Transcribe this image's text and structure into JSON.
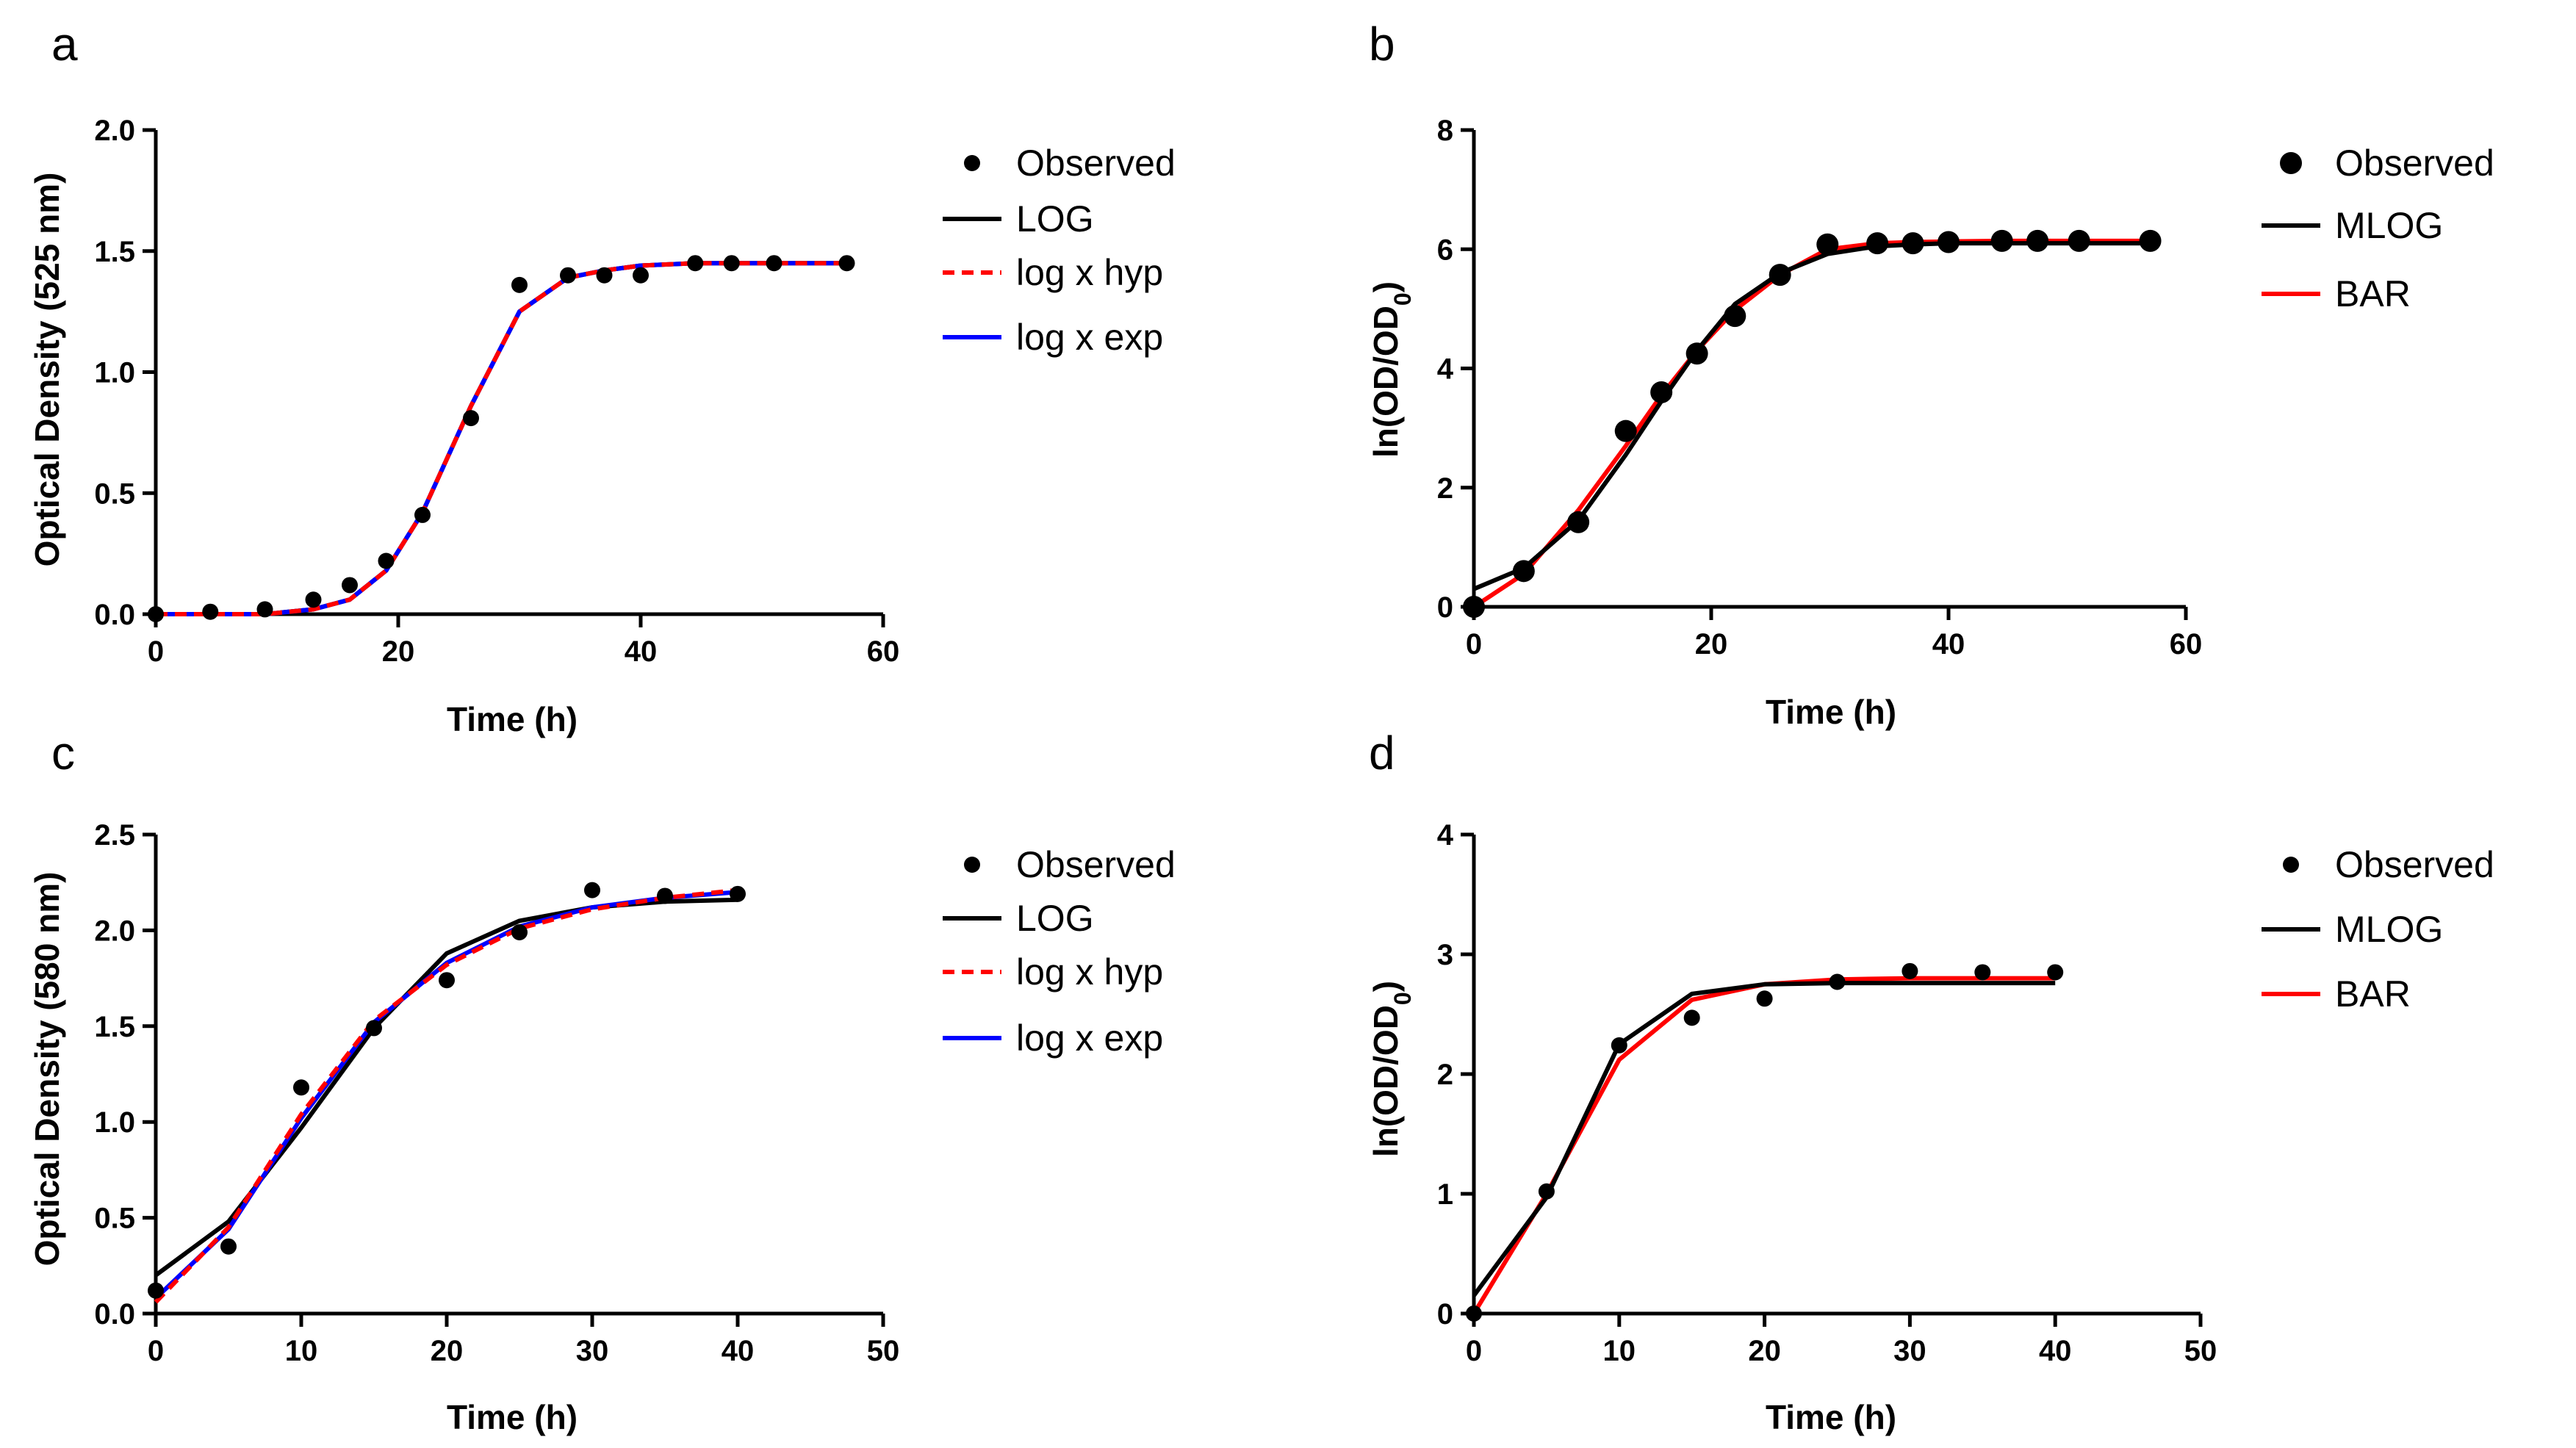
{
  "chart_data": [
    {
      "panel": "a",
      "type": "line",
      "xlabel": "Time (h)",
      "ylabel": "Optical Density (525 nm)",
      "xlim": [
        0,
        60
      ],
      "ylim": [
        0,
        2.0
      ],
      "xticks": [
        0,
        20,
        40,
        60
      ],
      "yticks": [
        0.0,
        0.5,
        1.0,
        1.5,
        2.0
      ],
      "xtick_labels": [
        "0",
        "20",
        "40",
        "60"
      ],
      "ytick_labels": [
        "0.0",
        "0.5",
        "1.0",
        "1.5",
        "2.0"
      ],
      "legend": [
        {
          "name": "Observed",
          "kind": "marker",
          "color": "#000000"
        },
        {
          "name": "LOG",
          "kind": "line",
          "color": "#000000",
          "dash": "solid"
        },
        {
          "name": "log x hyp",
          "kind": "line",
          "color": "#ff0000",
          "dash": "dashed"
        },
        {
          "name": "log x exp",
          "kind": "line",
          "color": "#0000ff",
          "dash": "solid"
        }
      ],
      "observed": {
        "x": [
          0,
          4.5,
          9,
          13,
          16,
          19,
          22,
          26,
          30,
          34,
          37,
          40,
          44.5,
          47.5,
          51,
          57
        ],
        "y": [
          0.0,
          0.01,
          0.02,
          0.06,
          0.12,
          0.22,
          0.41,
          0.81,
          1.36,
          1.4,
          1.4,
          1.4,
          1.45,
          1.45,
          1.45,
          1.45
        ]
      },
      "series": [
        {
          "name": "LOG",
          "color": "#000000",
          "dash": "solid",
          "x": [
            0,
            4.5,
            9,
            13,
            16,
            19,
            22,
            26,
            30,
            34,
            37,
            40,
            44.5,
            47.5,
            51,
            57
          ],
          "y": [
            0.0,
            0.0,
            0.0,
            0.02,
            0.06,
            0.18,
            0.42,
            0.86,
            1.25,
            1.39,
            1.42,
            1.44,
            1.45,
            1.45,
            1.45,
            1.45
          ]
        },
        {
          "name": "log x exp",
          "color": "#0000ff",
          "dash": "solid",
          "x": [
            0,
            4.5,
            9,
            13,
            16,
            19,
            22,
            26,
            30,
            34,
            37,
            40,
            44.5,
            47.5,
            51,
            57
          ],
          "y": [
            0.0,
            0.0,
            0.0,
            0.02,
            0.06,
            0.18,
            0.42,
            0.86,
            1.25,
            1.39,
            1.42,
            1.44,
            1.45,
            1.45,
            1.45,
            1.45
          ]
        },
        {
          "name": "log x hyp",
          "color": "#ff0000",
          "dash": "dashed",
          "x": [
            0,
            4.5,
            9,
            13,
            16,
            19,
            22,
            26,
            30,
            34,
            37,
            40,
            44.5,
            47.5,
            51,
            57
          ],
          "y": [
            0.0,
            0.0,
            0.0,
            0.02,
            0.06,
            0.18,
            0.42,
            0.86,
            1.25,
            1.39,
            1.42,
            1.44,
            1.45,
            1.45,
            1.45,
            1.45
          ]
        }
      ]
    },
    {
      "panel": "b",
      "type": "line",
      "xlabel": "Time (h)",
      "ylabel": "ln(OD/OD0)",
      "xlim": [
        0,
        60
      ],
      "ylim": [
        0,
        8
      ],
      "xticks": [
        0,
        20,
        40,
        60
      ],
      "yticks": [
        0,
        2,
        4,
        6,
        8
      ],
      "xtick_labels": [
        "0",
        "20",
        "40",
        "60"
      ],
      "ytick_labels": [
        "0",
        "2",
        "4",
        "6",
        "8"
      ],
      "legend": [
        {
          "name": "Observed",
          "kind": "marker",
          "color": "#000000"
        },
        {
          "name": "MLOG",
          "kind": "line",
          "color": "#000000",
          "dash": "solid"
        },
        {
          "name": "BAR",
          "kind": "line",
          "color": "#ff0000",
          "dash": "solid"
        }
      ],
      "observed": {
        "x": [
          0,
          4.2,
          8.8,
          12.8,
          15.8,
          18.8,
          22,
          25.8,
          29.8,
          34,
          37,
          40,
          44.5,
          47.5,
          51,
          57
        ],
        "y": [
          0.0,
          0.6,
          1.42,
          2.95,
          3.6,
          4.25,
          4.88,
          5.57,
          6.08,
          6.1,
          6.1,
          6.12,
          6.14,
          6.14,
          6.14,
          6.14
        ]
      },
      "series": [
        {
          "name": "BAR",
          "color": "#ff0000",
          "dash": "solid",
          "x": [
            0,
            4.2,
            8.8,
            12.8,
            15.8,
            18.8,
            22,
            25.8,
            29.8,
            34,
            37,
            40,
            44.5,
            47.5,
            51,
            57
          ],
          "y": [
            0.0,
            0.55,
            1.62,
            2.7,
            3.55,
            4.3,
            4.98,
            5.57,
            6.0,
            6.1,
            6.12,
            6.13,
            6.14,
            6.14,
            6.14,
            6.14
          ]
        },
        {
          "name": "MLOG",
          "color": "#000000",
          "dash": "solid",
          "x": [
            0,
            4.2,
            8.8,
            12.8,
            15.8,
            18.8,
            22,
            25.8,
            29.8,
            34,
            37,
            40,
            44.5,
            47.5,
            51,
            57
          ],
          "y": [
            0.3,
            0.65,
            1.45,
            2.55,
            3.45,
            4.3,
            5.08,
            5.6,
            5.92,
            6.05,
            6.08,
            6.1,
            6.1,
            6.1,
            6.1,
            6.1
          ]
        }
      ]
    },
    {
      "panel": "c",
      "type": "line",
      "xlabel": "Time (h)",
      "ylabel": "Optical Density (580 nm)",
      "xlim": [
        0,
        50
      ],
      "ylim": [
        0,
        2.5
      ],
      "xticks": [
        0,
        10,
        20,
        30,
        40,
        50
      ],
      "yticks": [
        0.0,
        0.5,
        1.0,
        1.5,
        2.0,
        2.5
      ],
      "xtick_labels": [
        "0",
        "10",
        "20",
        "30",
        "40",
        "50"
      ],
      "ytick_labels": [
        "0.0",
        "0.5",
        "1.0",
        "1.5",
        "2.0",
        "2.5"
      ],
      "legend": [
        {
          "name": "Observed",
          "kind": "marker",
          "color": "#000000"
        },
        {
          "name": "LOG",
          "kind": "line",
          "color": "#000000",
          "dash": "solid"
        },
        {
          "name": "log x hyp",
          "kind": "line",
          "color": "#ff0000",
          "dash": "dashed"
        },
        {
          "name": "log x exp",
          "kind": "line",
          "color": "#0000ff",
          "dash": "solid"
        }
      ],
      "observed": {
        "x": [
          0,
          5,
          10,
          15,
          20,
          25,
          30,
          35,
          40
        ],
        "y": [
          0.12,
          0.35,
          1.18,
          1.49,
          1.74,
          1.99,
          2.21,
          2.18,
          2.19
        ]
      },
      "series": [
        {
          "name": "LOG",
          "color": "#000000",
          "dash": "solid",
          "x": [
            0,
            5,
            10,
            15,
            20,
            25,
            30,
            35,
            40
          ],
          "y": [
            0.2,
            0.48,
            0.97,
            1.49,
            1.88,
            2.05,
            2.12,
            2.15,
            2.16
          ]
        },
        {
          "name": "log x exp",
          "color": "#0000ff",
          "dash": "solid",
          "x": [
            0,
            5,
            10,
            15,
            20,
            25,
            30,
            35,
            40
          ],
          "y": [
            0.08,
            0.44,
            1.02,
            1.52,
            1.83,
            2.02,
            2.12,
            2.17,
            2.2
          ]
        },
        {
          "name": "log x hyp",
          "color": "#ff0000",
          "dash": "dashed",
          "x": [
            0,
            5,
            10,
            15,
            20,
            25,
            30,
            35,
            40
          ],
          "y": [
            0.06,
            0.45,
            1.04,
            1.53,
            1.82,
            2.01,
            2.11,
            2.17,
            2.21
          ]
        }
      ]
    },
    {
      "panel": "d",
      "type": "line",
      "xlabel": "Time (h)",
      "ylabel": "ln(OD/OD0)",
      "xlim": [
        0,
        50
      ],
      "ylim": [
        0,
        4
      ],
      "xticks": [
        0,
        10,
        20,
        30,
        40,
        50
      ],
      "yticks": [
        0,
        1,
        2,
        3,
        4
      ],
      "xtick_labels": [
        "0",
        "10",
        "20",
        "30",
        "40",
        "50"
      ],
      "ytick_labels": [
        "0",
        "1",
        "2",
        "3",
        "4"
      ],
      "legend": [
        {
          "name": "Observed",
          "kind": "marker",
          "color": "#000000"
        },
        {
          "name": "MLOG",
          "kind": "line",
          "color": "#000000",
          "dash": "solid"
        },
        {
          "name": "BAR",
          "kind": "line",
          "color": "#ff0000",
          "dash": "solid"
        }
      ],
      "observed": {
        "x": [
          0,
          5,
          10,
          15,
          20,
          25,
          30,
          35,
          40
        ],
        "y": [
          0.0,
          1.02,
          2.24,
          2.47,
          2.63,
          2.77,
          2.86,
          2.85,
          2.85
        ]
      },
      "series": [
        {
          "name": "BAR",
          "color": "#ff0000",
          "dash": "solid",
          "x": [
            0,
            5,
            10,
            15,
            20,
            25,
            30,
            35,
            40
          ],
          "y": [
            0.0,
            1.0,
            2.12,
            2.62,
            2.75,
            2.79,
            2.8,
            2.8,
            2.8
          ]
        },
        {
          "name": "MLOG",
          "color": "#000000",
          "dash": "solid",
          "x": [
            0,
            5,
            10,
            15,
            20,
            25,
            30,
            35,
            40
          ],
          "y": [
            0.15,
            0.97,
            2.25,
            2.67,
            2.75,
            2.76,
            2.76,
            2.76,
            2.76
          ]
        }
      ]
    }
  ]
}
